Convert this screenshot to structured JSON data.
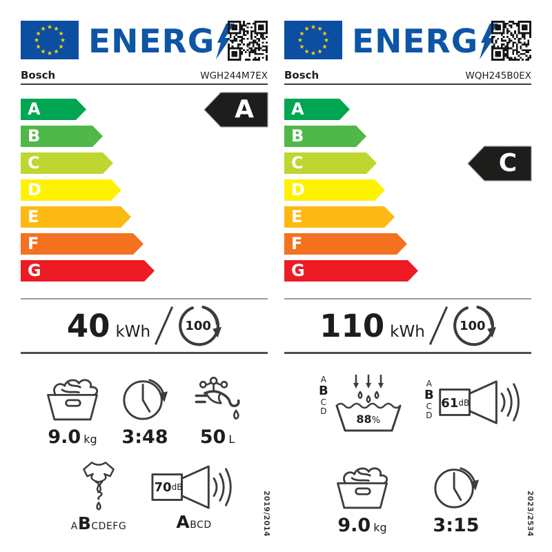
{
  "brand": {
    "eu_blue": "#0b4ea2",
    "logo_blue": "#0d55a5",
    "star_yellow": "#ffd500",
    "class_arrow_bg": "#1d1d1b"
  },
  "logo_text": "ENERG",
  "labels": [
    {
      "supplier": "Bosch",
      "model": "WGH244M7EX",
      "scale": [
        {
          "letter": "A",
          "color": "#00a651"
        },
        {
          "letter": "B",
          "color": "#50b848"
        },
        {
          "letter": "C",
          "color": "#bed62f"
        },
        {
          "letter": "D",
          "color": "#fff200"
        },
        {
          "letter": "E",
          "color": "#fdb913"
        },
        {
          "letter": "F",
          "color": "#f3711f"
        },
        {
          "letter": "G",
          "color": "#ed1c24"
        }
      ],
      "energy_class": "A",
      "class_row": 0,
      "energy": {
        "value": "40",
        "unit": "kWh",
        "cycles": "100"
      },
      "capacity": {
        "value": "9.0",
        "unit": "kg"
      },
      "duration": {
        "value": "3:48"
      },
      "water": {
        "value": "50",
        "unit": "L"
      },
      "spin_class": {
        "pre": "A",
        "bold": "B",
        "post": "CDEFG"
      },
      "noise": {
        "value": "70",
        "unit": "dB",
        "pre": "",
        "bold": "A",
        "post": "BCD"
      },
      "regulation": "2019/2014"
    },
    {
      "supplier": "Bosch",
      "model": "WQH245B0EX",
      "scale": [
        {
          "letter": "A",
          "color": "#00a651"
        },
        {
          "letter": "B",
          "color": "#50b848"
        },
        {
          "letter": "C",
          "color": "#bed62f"
        },
        {
          "letter": "D",
          "color": "#fff200"
        },
        {
          "letter": "E",
          "color": "#fdb913"
        },
        {
          "letter": "F",
          "color": "#f3711f"
        },
        {
          "letter": "G",
          "color": "#ed1c24"
        }
      ],
      "energy_class": "C",
      "class_row": 2,
      "energy": {
        "value": "110",
        "unit": "kWh",
        "cycles": "100"
      },
      "condensation": {
        "value": "88",
        "unit": "%",
        "letters": [
          "A",
          "B",
          "C",
          "D"
        ],
        "bold_index": 1
      },
      "noise": {
        "value": "61",
        "unit": "dB",
        "letters": [
          "A",
          "B",
          "C",
          "D"
        ],
        "bold_index": 1
      },
      "capacity": {
        "value": "9.0",
        "unit": "kg"
      },
      "duration": {
        "value": "3:15"
      },
      "regulation": "2023/2534"
    }
  ]
}
